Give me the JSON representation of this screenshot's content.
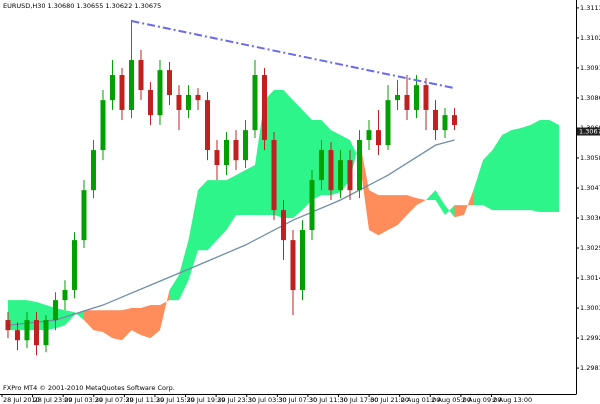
{
  "chart_data": {
    "type": "candlestick",
    "title": "EURUSD,H30  1.30680 1.30655 1.30622 1.30675",
    "annotation": "FXPro MT4 © 2001-2010 MetaQuotes Software Corp.",
    "up_color": "#00a000",
    "down_color": "#c02020",
    "grid": false,
    "xlim": [
      -0.84,
      59.79
    ],
    "xticks": [
      {
        "value": -0.63,
        "label": "28 Jul 2010"
      },
      {
        "value": 2.59,
        "label": "28 Jul 23:00"
      },
      {
        "value": 5.81,
        "label": "29 Jul 03:30"
      },
      {
        "value": 9.03,
        "label": "29 Jul 07:30"
      },
      {
        "value": 12.25,
        "label": "29 Jul 11:30"
      },
      {
        "value": 15.47,
        "label": "29 Jul 15:30"
      },
      {
        "value": 18.69,
        "label": "29 Jul 19:30"
      },
      {
        "value": 21.91,
        "label": "29 Jul 23:30"
      },
      {
        "value": 25.13,
        "label": "30 Jul 03:30"
      },
      {
        "value": 28.35,
        "label": "30 Jul 07:30"
      },
      {
        "value": 31.57,
        "label": "30 Jul 11:30"
      },
      {
        "value": 34.79,
        "label": "30 Jul 17:00"
      },
      {
        "value": 38.01,
        "label": "30 Jul 21:00"
      },
      {
        "value": 41.23,
        "label": "2 Aug 01:00"
      },
      {
        "value": 44.45,
        "label": "2 Aug 05:00"
      },
      {
        "value": 47.67,
        "label": "2 Aug 09:00"
      },
      {
        "value": 50.89,
        "label": "2 Aug 13:00"
      }
    ],
    "ylim": [
      1.29715,
      1.31159
    ],
    "yticks": [
      {
        "value": 1.3113,
        "label": "1.31130"
      },
      {
        "value": 1.3102,
        "label": "1.31020"
      },
      {
        "value": 1.3091,
        "label": "1.30910"
      },
      {
        "value": 1.308,
        "label": "1.30800"
      },
      {
        "value": 1.3069,
        "label": "1.30690"
      },
      {
        "value": 1.3058,
        "label": "1.30580"
      },
      {
        "value": 1.3047,
        "label": "1.30470"
      },
      {
        "value": 1.3036,
        "label": "1.30360"
      },
      {
        "value": 1.3025,
        "label": "1.30250"
      },
      {
        "value": 1.3014,
        "label": "1.30140"
      },
      {
        "value": 1.3003,
        "label": "1.30030"
      },
      {
        "value": 1.2992,
        "label": "1.29920"
      },
      {
        "value": 1.2981,
        "label": "1.29810"
      }
    ],
    "last_price": 1.30677,
    "values": [
      [
        1.29986,
        1.30015,
        1.2992,
        1.29949
      ],
      [
        1.29949,
        1.29978,
        1.29876,
        1.29912
      ],
      [
        1.29912,
        1.30015,
        1.29883,
        1.29986
      ],
      [
        1.29986,
        1.30015,
        1.29857,
        1.29894
      ],
      [
        1.29894,
        1.30004,
        1.29868,
        1.29986
      ],
      [
        1.29986,
        1.30088,
        1.29949,
        1.30059
      ],
      [
        1.30059,
        1.30132,
        1.30022,
        1.30096
      ],
      [
        1.30096,
        1.30308,
        1.30066,
        1.30279
      ],
      [
        1.30279,
        1.30499,
        1.3025,
        1.30462
      ],
      [
        1.30462,
        1.30646,
        1.30433,
        1.30609
      ],
      [
        1.30609,
        1.30829,
        1.30572,
        1.30792
      ],
      [
        1.30792,
        1.30939,
        1.30756,
        1.30884
      ],
      [
        1.30884,
        1.3091,
        1.30719,
        1.30756
      ],
      [
        1.30756,
        1.31086,
        1.30726,
        1.30939
      ],
      [
        1.30939,
        1.30976,
        1.30792,
        1.30829
      ],
      [
        1.30829,
        1.30858,
        1.30701,
        1.30737
      ],
      [
        1.30737,
        1.30939,
        1.30701,
        1.30902
      ],
      [
        1.30902,
        1.30932,
        1.30774,
        1.30811
      ],
      [
        1.30811,
        1.30847,
        1.30682,
        1.30756
      ],
      [
        1.30756,
        1.30847,
        1.30726,
        1.30811
      ],
      [
        1.30811,
        1.30836,
        1.30756,
        1.30792
      ],
      [
        1.30792,
        1.30822,
        1.30572,
        1.30609
      ],
      [
        1.30609,
        1.30646,
        1.30499,
        1.30554
      ],
      [
        1.30554,
        1.30675,
        1.30517,
        1.30646
      ],
      [
        1.30646,
        1.30682,
        1.30536,
        1.30572
      ],
      [
        1.30572,
        1.30719,
        1.30543,
        1.30682
      ],
      [
        1.30682,
        1.30939,
        1.30653,
        1.30884
      ],
      [
        1.30884,
        1.3091,
        1.30609,
        1.30646
      ],
      [
        1.30646,
        1.30675,
        1.30352,
        1.30389
      ],
      [
        1.30389,
        1.30426,
        1.30206,
        1.30279
      ],
      [
        1.30279,
        1.30316,
        1.30004,
        1.30096
      ],
      [
        1.30096,
        1.30352,
        1.30059,
        1.30316
      ],
      [
        1.30316,
        1.30536,
        1.30279,
        1.30499
      ],
      [
        1.30499,
        1.30646,
        1.30462,
        1.30609
      ],
      [
        1.30609,
        1.30638,
        1.30426,
        1.30462
      ],
      [
        1.30462,
        1.30609,
        1.30433,
        1.30572
      ],
      [
        1.30572,
        1.30609,
        1.30426,
        1.30462
      ],
      [
        1.30462,
        1.30682,
        1.30433,
        1.30646
      ],
      [
        1.30646,
        1.30719,
        1.30609,
        1.30682
      ],
      [
        1.30682,
        1.30756,
        1.30591,
        1.30627
      ],
      [
        1.30627,
        1.30847,
        1.30609,
        1.30792
      ],
      [
        1.30792,
        1.30866,
        1.30756,
        1.30811
      ],
      [
        1.30811,
        1.30884,
        1.30719,
        1.30756
      ],
      [
        1.30756,
        1.30884,
        1.30726,
        1.30847
      ],
      [
        1.30847,
        1.30873,
        1.30682,
        1.30756
      ],
      [
        1.30756,
        1.30792,
        1.30646,
        1.30682
      ],
      [
        1.30682,
        1.30763,
        1.30653,
        1.30737
      ],
      [
        1.30737,
        1.30763,
        1.30682,
        1.30701
      ]
    ],
    "cloud": {
      "up_color": "#2ef58a",
      "down_color": "#ff8c5a",
      "x": [
        0,
        1,
        2,
        3,
        4,
        5,
        6,
        7,
        8,
        9,
        10,
        11,
        12,
        13,
        14,
        15,
        16,
        17,
        18,
        19,
        20,
        21,
        22,
        23,
        24,
        25,
        26,
        27,
        28,
        29,
        30,
        31,
        32,
        33,
        34,
        35,
        36,
        37,
        38,
        39,
        40,
        41,
        42,
        43,
        44,
        45,
        46,
        47,
        48,
        49,
        50,
        51,
        52,
        53,
        54,
        55,
        56,
        57,
        58
      ],
      "span_a": [
        1.30059,
        1.30059,
        1.30059,
        1.30052,
        1.30041,
        1.3003,
        1.30022,
        1.30015,
        1.29986,
        1.29949,
        1.29942,
        1.2992,
        1.29912,
        1.29949,
        1.29931,
        1.2992,
        1.29949,
        1.30096,
        1.30151,
        1.30279,
        1.30462,
        1.30499,
        1.30499,
        1.30499,
        1.30517,
        1.30536,
        1.30554,
        1.30792,
        1.30829,
        1.30829,
        1.30792,
        1.30756,
        1.30719,
        1.30719,
        1.30682,
        1.30664,
        1.30646,
        1.30572,
        1.30316,
        1.30297,
        1.30316,
        1.30334,
        1.30371,
        1.30407,
        1.30426,
        1.30462,
        1.30407,
        1.30363,
        1.30371,
        1.30462,
        1.30572,
        1.30609,
        1.30664,
        1.30682,
        1.3069,
        1.30701,
        1.30719,
        1.30719,
        1.30701
      ],
      "span_b": [
        1.29949,
        1.29949,
        1.29949,
        1.29949,
        1.29949,
        1.29956,
        1.29967,
        1.30004,
        1.30022,
        1.30022,
        1.30022,
        1.30022,
        1.30022,
        1.3003,
        1.3003,
        1.30041,
        1.30041,
        1.30059,
        1.30059,
        1.30132,
        1.30242,
        1.30242,
        1.30279,
        1.30316,
        1.30371,
        1.30371,
        1.30371,
        1.30371,
        1.30371,
        1.3036,
        1.3036,
        1.30389,
        1.30426,
        1.30444,
        1.30444,
        1.30455,
        1.30499,
        1.30646,
        1.30462,
        1.30444,
        1.30444,
        1.30444,
        1.30444,
        1.30433,
        1.30426,
        1.30426,
        1.30371,
        1.30407,
        1.30407,
        1.30407,
        1.30407,
        1.30389,
        1.30389,
        1.30389,
        1.30389,
        1.30389,
        1.30382,
        1.30382,
        1.30382
      ]
    },
    "moving_average": {
      "color": "#6f8fa8",
      "x": [
        0,
        5,
        10,
        15,
        20,
        25,
        30,
        35,
        40,
        45,
        47
      ],
      "values": [
        1.29967,
        1.29986,
        1.30041,
        1.30114,
        1.30187,
        1.30261,
        1.30352,
        1.30426,
        1.30517,
        1.30627,
        1.30646
      ]
    },
    "trendline": {
      "color": "#6a6aee",
      "x": [
        13,
        47
      ],
      "values": [
        1.31082,
        1.30836
      ]
    }
  }
}
